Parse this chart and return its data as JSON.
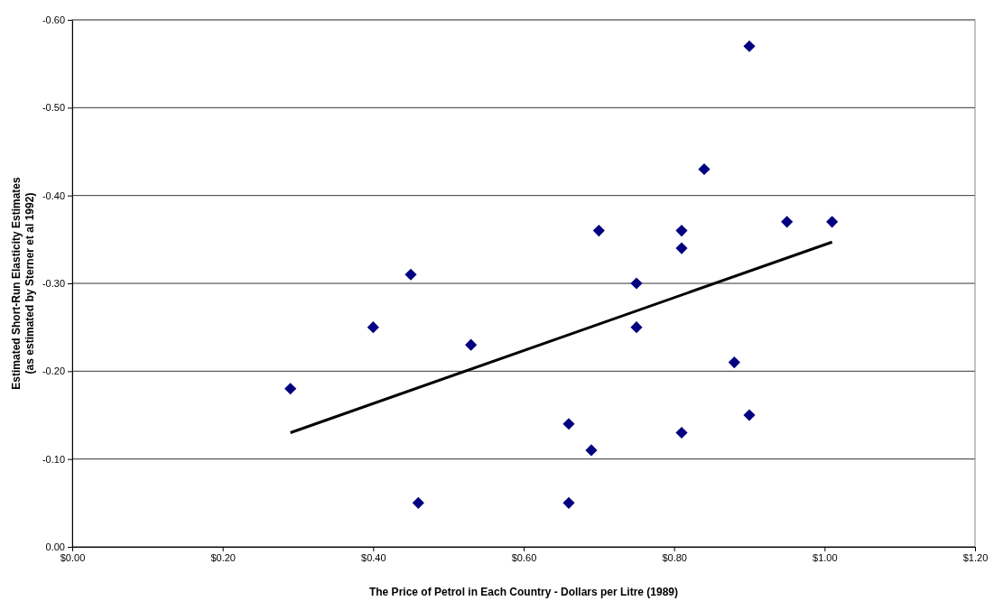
{
  "chart_data": {
    "type": "scatter",
    "xlabel": "The Price of Petrol in Each Country - Dollars per Litre (1989)",
    "ylabel": "Estimated Short-Run Elasticity Estimates\n(as estimated by Sterner et al 1992)",
    "xlim": [
      0,
      1.2
    ],
    "xticks": [
      {
        "value": 0,
        "label": "$0.00"
      },
      {
        "value": 0.2,
        "label": "$0.20"
      },
      {
        "value": 0.4,
        "label": "$0.40"
      },
      {
        "value": 0.6,
        "label": "$0.60"
      },
      {
        "value": 0.8,
        "label": "$0.80"
      },
      {
        "value": 1,
        "label": "$1.00"
      },
      {
        "value": 1.2,
        "label": "$1.20"
      }
    ],
    "ylim": [
      0,
      -0.6
    ],
    "yticks": [
      {
        "value": 0,
        "label": "0.00"
      },
      {
        "value": -0.1,
        "label": "-0.10"
      },
      {
        "value": -0.2,
        "label": "-0.20"
      },
      {
        "value": -0.3,
        "label": "-0.30"
      },
      {
        "value": -0.4,
        "label": "-0.40"
      },
      {
        "value": -0.5,
        "label": "-0.50"
      },
      {
        "value": -0.6,
        "label": "-0.60"
      }
    ],
    "grid": "y",
    "series": [
      {
        "color": "#000080",
        "marker": "diamond",
        "x": [
          0.29,
          0.4,
          0.45,
          0.46,
          0.53,
          0.66,
          0.66,
          0.69,
          0.7,
          0.75,
          0.75,
          0.81,
          0.81,
          0.81,
          0.84,
          0.88,
          0.9,
          0.9,
          0.95,
          1.01
        ],
        "values": [
          -0.18,
          -0.25,
          -0.31,
          -0.05,
          -0.23,
          -0.14,
          -0.05,
          -0.11,
          -0.36,
          -0.3,
          -0.25,
          -0.36,
          -0.34,
          -0.13,
          -0.43,
          -0.21,
          -0.57,
          -0.15,
          -0.37,
          -0.37
        ]
      },
      {
        "type": "line",
        "color": "#000000",
        "marker": "none",
        "line_style": "solid",
        "x": [
          0.29,
          1.01
        ],
        "values": [
          -0.13,
          -0.347
        ]
      }
    ]
  }
}
